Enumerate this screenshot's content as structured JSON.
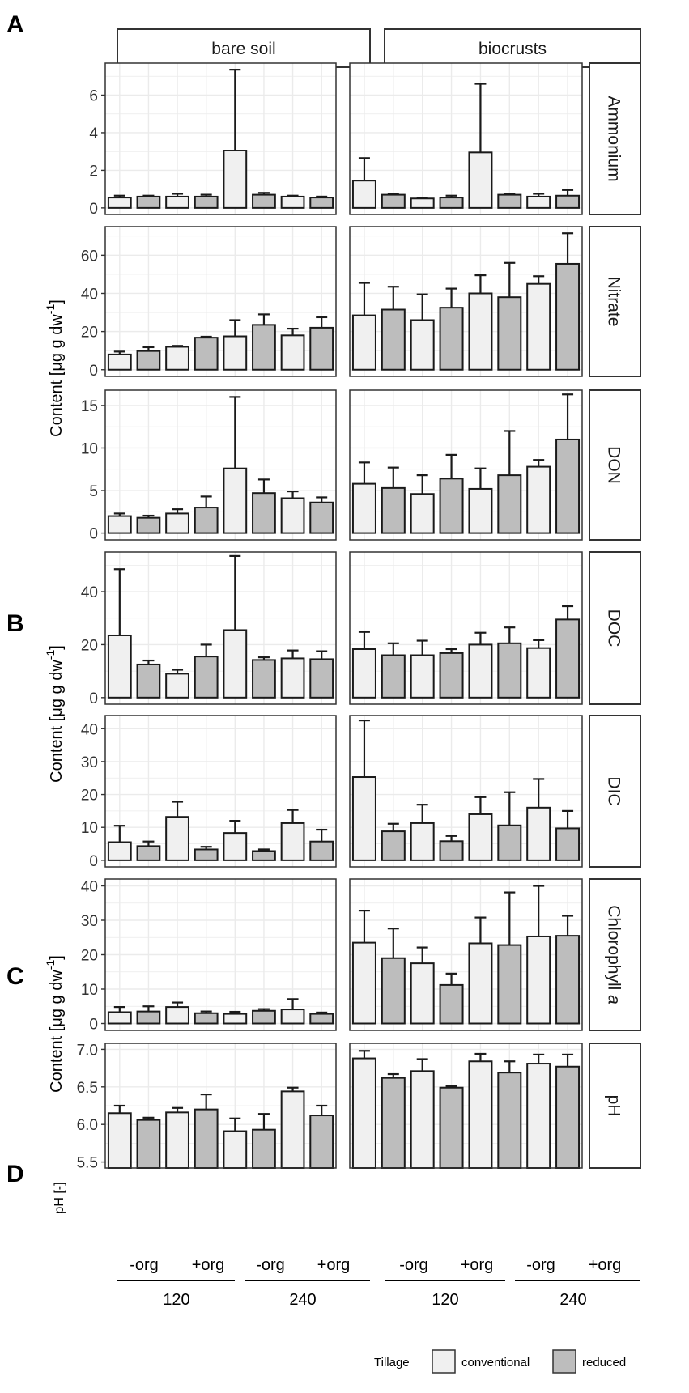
{
  "figure": {
    "panel_letters": [
      "A",
      "B",
      "C",
      "D"
    ],
    "facet_columns": [
      "bare soil",
      "biocrusts"
    ],
    "y_axis_titles": {
      "content_prefix": "Content [μg g dw",
      "content_suffix": "]",
      "superscript": "-1",
      "ph": "pH [-]"
    },
    "x_axis": {
      "treatment_labels": [
        "-org",
        "+org",
        "-org",
        "+org"
      ],
      "duration_labels": [
        "120",
        "240"
      ]
    },
    "legend": {
      "title": "Tillage",
      "items": [
        {
          "label": "conventional",
          "color": "#f0f0f0"
        },
        {
          "label": "reduced",
          "color": "#bdbdbd"
        }
      ]
    }
  },
  "chart_data": {
    "type": "bar",
    "bar_order": [
      "120 -org conventional",
      "120 -org reduced",
      "120 +org conventional",
      "120 +org reduced",
      "240 -org conventional",
      "240 -org reduced",
      "240 +org conventional",
      "240 +org reduced"
    ],
    "colors": {
      "conventional": "#f0f0f0",
      "reduced": "#bdbdbd",
      "panel_bg": "#ffffff",
      "grid": "#ebebeb",
      "axis_text": "#333333"
    },
    "rows": [
      {
        "name": "Ammonium",
        "strip": "Ammonium",
        "ylim": [
          -0.35,
          7.7
        ],
        "ticks": [
          0,
          2,
          4,
          6
        ],
        "tick_labels": [
          "0",
          "2",
          "4",
          "6"
        ],
        "series": {
          "bare soil": {
            "values": [
              0.55,
              0.6,
              0.6,
              0.6,
              3.05,
              0.7,
              0.6,
              0.55
            ],
            "errors": [
              0.1,
              0.05,
              0.15,
              0.1,
              4.3,
              0.1,
              0.05,
              0.05
            ]
          },
          "biocrusts": {
            "values": [
              1.45,
              0.7,
              0.5,
              0.55,
              2.95,
              0.7,
              0.6,
              0.65
            ],
            "errors": [
              1.2,
              0.05,
              0.05,
              0.1,
              3.65,
              0.05,
              0.15,
              0.3
            ]
          }
        }
      },
      {
        "name": "Nitrate",
        "strip": "Nitrate",
        "ylim": [
          -3.5,
          75
        ],
        "ticks": [
          0,
          20,
          40,
          60
        ],
        "tick_labels": [
          "0",
          "20",
          "40",
          "60"
        ],
        "series": {
          "bare soil": {
            "values": [
              8,
              9.8,
              12,
              16.8,
              17.5,
              23.5,
              18,
              22
            ],
            "errors": [
              1.5,
              2,
              0.5,
              0.5,
              8.5,
              5.5,
              3.5,
              5.5
            ]
          },
          "biocrusts": {
            "values": [
              28.5,
              31.5,
              26,
              32.5,
              40,
              38,
              45,
              55.5
            ],
            "errors": [
              17,
              12,
              13.5,
              10,
              9.5,
              18,
              4,
              16
            ]
          }
        }
      },
      {
        "name": "DON",
        "strip": "DON",
        "ylim": [
          -0.8,
          16.8
        ],
        "ticks": [
          0,
          5,
          10,
          15
        ],
        "tick_labels": [
          "0",
          "5",
          "10",
          "15"
        ],
        "series": {
          "bare soil": {
            "values": [
              2,
              1.8,
              2.3,
              3,
              7.6,
              4.7,
              4.1,
              3.6
            ],
            "errors": [
              0.3,
              0.25,
              0.5,
              1.3,
              8.4,
              1.6,
              0.8,
              0.6
            ]
          },
          "biocrusts": {
            "values": [
              5.8,
              5.3,
              4.6,
              6.4,
              5.2,
              6.8,
              7.8,
              11
            ],
            "errors": [
              2.5,
              2.4,
              2.2,
              2.8,
              2.4,
              5.2,
              0.8,
              5.3
            ]
          }
        }
      },
      {
        "name": "DOC",
        "strip": "DOC",
        "ylim": [
          -2.5,
          55
        ],
        "ticks": [
          0,
          20,
          40
        ],
        "tick_labels": [
          "0",
          "20",
          "40"
        ],
        "series": {
          "bare soil": {
            "values": [
              23.5,
              12.5,
              9,
              15.5,
              25.5,
              14.2,
              14.8,
              14.5
            ],
            "errors": [
              25,
              1.5,
              1.5,
              4.5,
              28,
              1,
              3,
              3
            ]
          },
          "biocrusts": {
            "values": [
              18.3,
              16,
              16,
              16.8,
              20,
              20.5,
              18.7,
              29.5
            ],
            "errors": [
              6.5,
              4.5,
              5.5,
              1.5,
              4.5,
              6,
              3,
              5
            ]
          }
        }
      },
      {
        "name": "DIC",
        "strip": "DIC",
        "ylim": [
          -2,
          44
        ],
        "ticks": [
          0,
          10,
          20,
          30,
          40
        ],
        "tick_labels": [
          "0",
          "10",
          "20",
          "30",
          "40"
        ],
        "series": {
          "bare soil": {
            "values": [
              5.5,
              4.3,
              13.2,
              3.3,
              8.3,
              2.8,
              11.3,
              5.7
            ],
            "errors": [
              5,
              1.4,
              4.6,
              0.8,
              3.7,
              0.5,
              4,
              3.6
            ]
          },
          "biocrusts": {
            "values": [
              25.3,
              8.8,
              11.3,
              5.8,
              14,
              10.6,
              16,
              9.7
            ],
            "errors": [
              17.2,
              2.3,
              5.6,
              1.6,
              5.2,
              10.1,
              8.7,
              5.3
            ]
          }
        }
      },
      {
        "name": "Chlorophyll a",
        "strip": "Chlorophyll a",
        "ylim": [
          -2,
          42
        ],
        "ticks": [
          0,
          10,
          20,
          30,
          40
        ],
        "tick_labels": [
          "0",
          "10",
          "20",
          "30",
          "40"
        ],
        "series": {
          "bare soil": {
            "values": [
              3.3,
              3.5,
              4.8,
              3,
              2.8,
              3.7,
              4.1,
              2.8
            ],
            "errors": [
              1.5,
              1.5,
              1.3,
              0.5,
              0.6,
              0.5,
              3,
              0.4
            ]
          },
          "biocrusts": {
            "values": [
              23.5,
              19,
              17.5,
              11.2,
              23.3,
              22.8,
              25.3,
              25.5
            ],
            "errors": [
              9.3,
              8.6,
              4.6,
              3.3,
              7.5,
              15.3,
              14.7,
              5.8
            ]
          }
        }
      },
      {
        "name": "pH",
        "strip": "pH",
        "ylim": [
          5.42,
          7.08
        ],
        "ticks": [
          5.5,
          6.0,
          6.5,
          7.0
        ],
        "tick_labels": [
          "5.5",
          "6.0",
          "6.5",
          "7.0"
        ],
        "series": {
          "bare soil": {
            "values": [
              6.15,
              6.06,
              6.16,
              6.2,
              5.91,
              5.93,
              6.44,
              6.12
            ],
            "errors": [
              0.1,
              0.03,
              0.06,
              0.2,
              0.17,
              0.21,
              0.05,
              0.13
            ]
          },
          "biocrusts": {
            "values": [
              6.88,
              6.62,
              6.71,
              6.49,
              6.84,
              6.69,
              6.81,
              6.77
            ],
            "errors": [
              0.1,
              0.05,
              0.16,
              0.02,
              0.1,
              0.15,
              0.12,
              0.16
            ]
          }
        }
      }
    ]
  }
}
